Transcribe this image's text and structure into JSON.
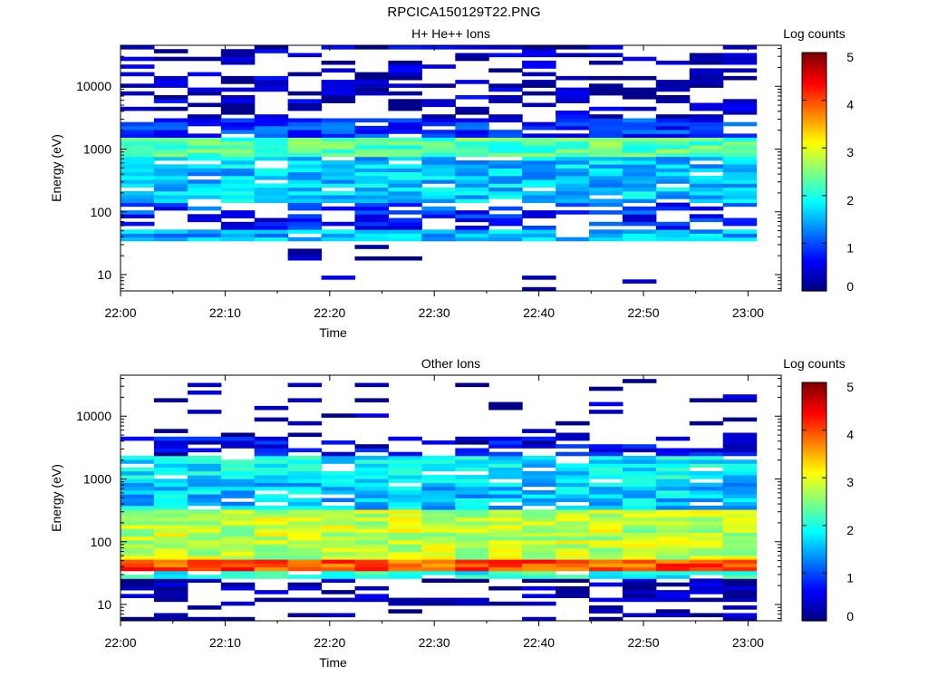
{
  "figure": {
    "title": "RPCICA150129T22.PNG"
  },
  "chart_data": [
    {
      "type": "heatmap",
      "title": "H+ He++ Ions",
      "xlabel": "Time",
      "ylabel": "Energy (eV)",
      "x_ticks": [
        "22:00",
        "22:10",
        "22:20",
        "22:30",
        "22:40",
        "22:50",
        "23:00"
      ],
      "y_scale": "log",
      "y_ticks": [
        10,
        100,
        1000,
        10000
      ],
      "ylim": [
        5.5,
        45000
      ],
      "colorbar": {
        "label": "Log counts",
        "range": [
          0,
          5
        ],
        "ticks": [
          "0",
          "1",
          "2",
          "3",
          "4",
          "5"
        ],
        "colormap": "jet"
      },
      "time_bins": 19,
      "bin_minutes": 3.2,
      "features": [
        {
          "energy_range_eV": [
            1000,
            1400
          ],
          "log_counts": 2.4,
          "note": "bright band"
        },
        {
          "energy_range_eV": [
            150,
            800
          ],
          "log_counts": 1.7
        },
        {
          "energy_range_eV": [
            38,
            50
          ],
          "log_counts": 1.6
        },
        {
          "energy_range_eV": [
            2000,
            40000
          ],
          "log_counts": 0.3,
          "note": "sparse"
        }
      ]
    },
    {
      "type": "heatmap",
      "title": "Other Ions",
      "xlabel": "Time",
      "ylabel": "Energy (eV)",
      "x_ticks": [
        "22:00",
        "22:10",
        "22:20",
        "22:30",
        "22:40",
        "22:50",
        "23:00"
      ],
      "y_scale": "log",
      "y_ticks": [
        10,
        100,
        1000,
        10000
      ],
      "ylim": [
        5.5,
        45000
      ],
      "colorbar": {
        "label": "Log counts",
        "range": [
          0,
          5
        ],
        "ticks": [
          "0",
          "1",
          "2",
          "3",
          "4",
          "5"
        ],
        "colormap": "jet"
      },
      "time_bins": 19,
      "bin_minutes": 3.2,
      "features": [
        {
          "energy_range_eV": [
            36,
            50
          ],
          "log_counts": 4.0,
          "note": "intense band"
        },
        {
          "energy_range_eV": [
            80,
            250
          ],
          "log_counts": 2.8
        },
        {
          "energy_range_eV": [
            1000,
            2000
          ],
          "log_counts": 1.8
        },
        {
          "energy_range_eV": [
            8,
            12
          ],
          "log_counts": 0.1,
          "note": "sparse"
        }
      ]
    }
  ]
}
